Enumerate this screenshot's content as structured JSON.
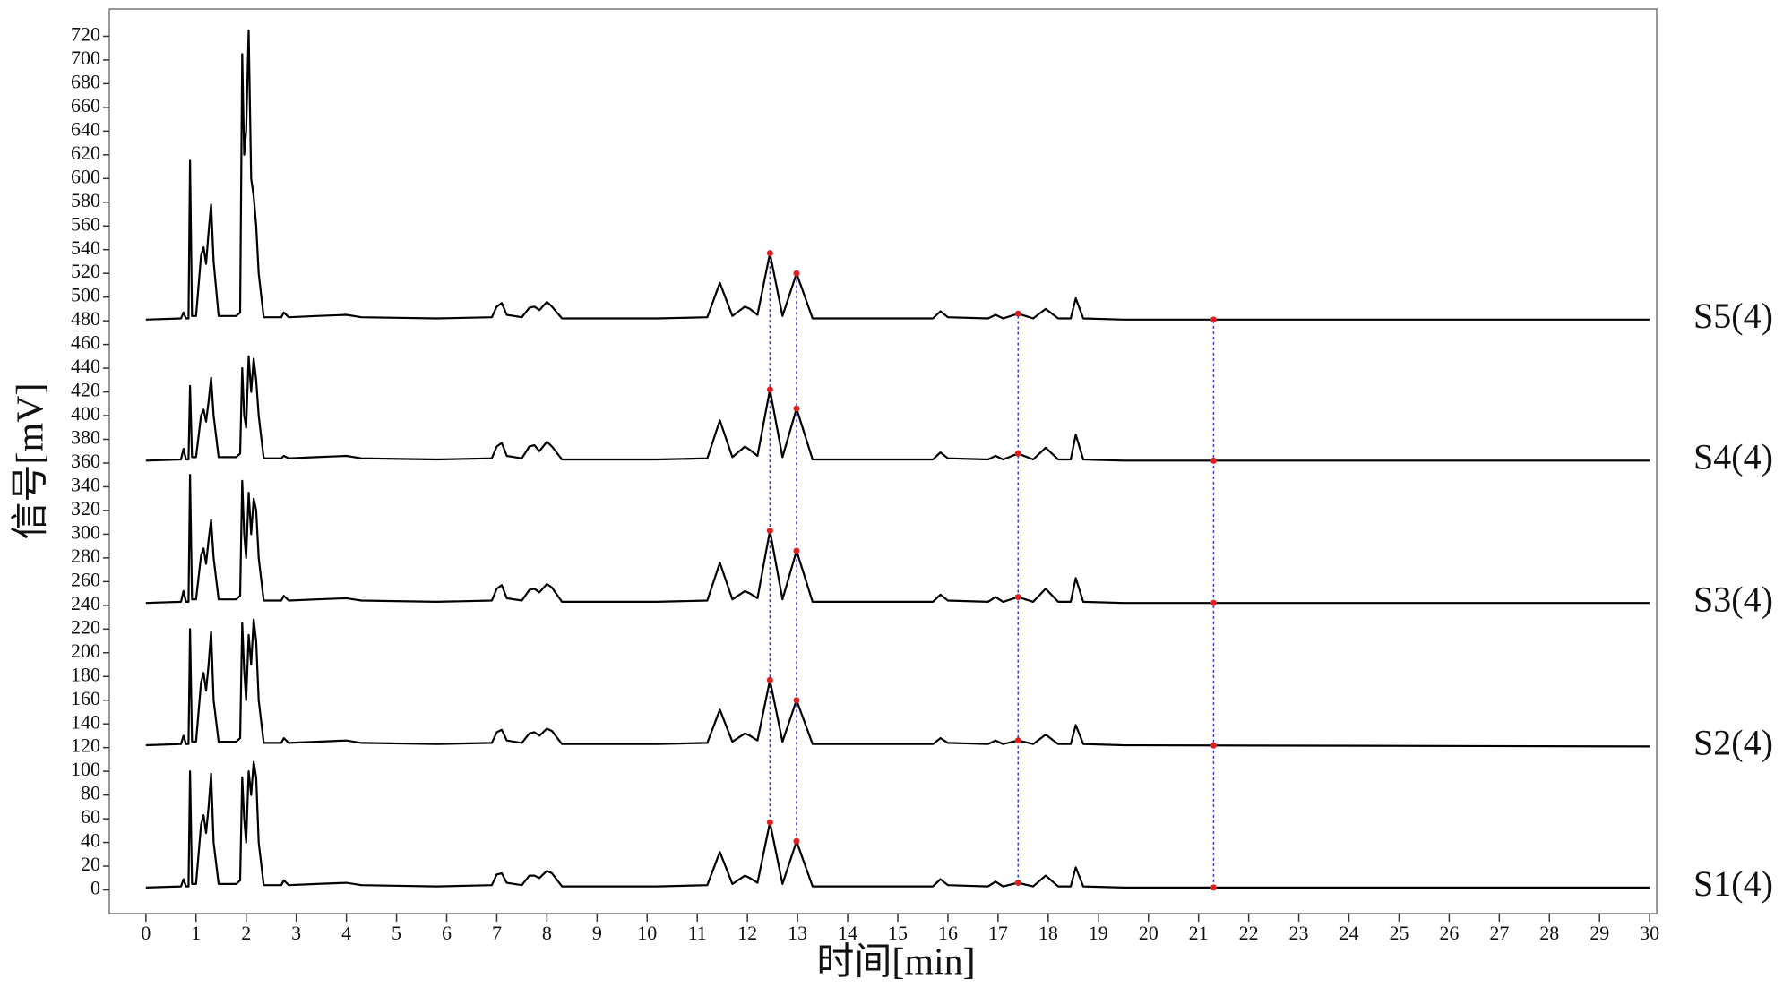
{
  "chart_data": {
    "type": "line",
    "x_label": "时间[min]",
    "y_label": "信号[mV]",
    "xlim": [
      -0.73,
      30.14
    ],
    "ylim": [
      -20,
      743
    ],
    "xticks": [
      0,
      1,
      2,
      3,
      4,
      5,
      6,
      7,
      8,
      9,
      10,
      11,
      12,
      13,
      14,
      15,
      16,
      17,
      18,
      19,
      20,
      21,
      22,
      23,
      24,
      25,
      26,
      27,
      28,
      29,
      30
    ],
    "yticks": [
      0,
      20,
      40,
      60,
      80,
      100,
      120,
      140,
      160,
      180,
      200,
      220,
      240,
      260,
      280,
      300,
      320,
      340,
      360,
      380,
      400,
      420,
      440,
      460,
      480,
      500,
      520,
      540,
      560,
      580,
      600,
      620,
      640,
      660,
      680,
      700,
      720
    ],
    "reference_lines": {
      "x": [
        12.45,
        12.98,
        17.4,
        21.3
      ],
      "color": "#3a3ad0"
    },
    "x": [
      0,
      0.7,
      0.75,
      0.8,
      0.85,
      0.88,
      0.92,
      1.0,
      1.1,
      1.15,
      1.2,
      1.25,
      1.3,
      1.35,
      1.45,
      1.8,
      1.88,
      1.92,
      1.96,
      2.0,
      2.05,
      2.1,
      2.15,
      2.2,
      2.25,
      2.35,
      2.7,
      2.75,
      2.85,
      3.4,
      4.0,
      4.3,
      5.8,
      6.9,
      7.0,
      7.1,
      7.2,
      7.5,
      7.65,
      7.75,
      7.85,
      8.0,
      8.1,
      8.3,
      10.2,
      11.2,
      11.45,
      11.7,
      11.95,
      12.05,
      12.2,
      12.45,
      12.7,
      12.98,
      13.3,
      15.7,
      15.85,
      16.0,
      16.8,
      16.95,
      17.1,
      17.4,
      17.7,
      17.95,
      18.2,
      18.45,
      18.55,
      18.7,
      19.5,
      30
    ],
    "series": [
      {
        "name": "S1(4)",
        "color": "#000000",
        "values": [
          2,
          3,
          9,
          3,
          3,
          100,
          5,
          5,
          55,
          63,
          48,
          70,
          98,
          40,
          5,
          5,
          8,
          95,
          60,
          40,
          100,
          80,
          108,
          95,
          40,
          4,
          4,
          8,
          4,
          5,
          6,
          4,
          3,
          4,
          13,
          14,
          6,
          4,
          12,
          12,
          10,
          16,
          14,
          3,
          3,
          4,
          32,
          5,
          12,
          10,
          6,
          57,
          5,
          41,
          3,
          3,
          9,
          4,
          3,
          7,
          3,
          6,
          3,
          12,
          3,
          3,
          19,
          3,
          2,
          2
        ]
      },
      {
        "name": "S2(4)",
        "color": "#000000",
        "values": [
          122,
          123,
          130,
          123,
          123,
          220,
          125,
          125,
          175,
          183,
          168,
          190,
          218,
          160,
          125,
          125,
          128,
          225,
          185,
          160,
          215,
          190,
          228,
          210,
          160,
          124,
          124,
          128,
          124,
          125,
          126,
          124,
          123,
          124,
          133,
          135,
          126,
          124,
          132,
          133,
          130,
          136,
          134,
          123,
          123,
          124,
          152,
          125,
          132,
          130,
          126,
          177,
          125,
          160,
          123,
          123,
          128,
          124,
          123,
          126,
          123,
          126,
          123,
          131,
          123,
          123,
          139,
          123,
          122,
          121
        ]
      },
      {
        "name": "S3(4)",
        "color": "#000000",
        "values": [
          242,
          243,
          252,
          243,
          243,
          350,
          245,
          245,
          282,
          288,
          275,
          295,
          312,
          280,
          245,
          245,
          248,
          345,
          300,
          280,
          335,
          300,
          330,
          320,
          280,
          244,
          244,
          248,
          244,
          245,
          246,
          244,
          243,
          244,
          254,
          257,
          246,
          244,
          253,
          254,
          251,
          258,
          255,
          243,
          243,
          244,
          276,
          245,
          252,
          250,
          246,
          303,
          245,
          286,
          243,
          243,
          249,
          244,
          243,
          247,
          243,
          247,
          243,
          254,
          243,
          243,
          263,
          243,
          242,
          242
        ]
      },
      {
        "name": "S4(4)",
        "color": "#000000",
        "values": [
          362,
          363,
          372,
          363,
          363,
          425,
          365,
          365,
          400,
          405,
          395,
          412,
          432,
          400,
          365,
          365,
          368,
          440,
          400,
          390,
          450,
          420,
          448,
          430,
          400,
          364,
          364,
          366,
          364,
          365,
          366,
          364,
          363,
          364,
          374,
          377,
          366,
          364,
          374,
          375,
          370,
          378,
          374,
          363,
          363,
          364,
          396,
          365,
          374,
          371,
          366,
          422,
          365,
          406,
          363,
          363,
          369,
          364,
          363,
          366,
          363,
          368,
          363,
          373,
          363,
          363,
          384,
          363,
          362,
          362
        ]
      },
      {
        "name": "S5(4)",
        "color": "#000000",
        "values": [
          481,
          482,
          487,
          482,
          482,
          615,
          484,
          484,
          535,
          542,
          528,
          555,
          578,
          530,
          484,
          484,
          487,
          705,
          620,
          640,
          725,
          600,
          585,
          560,
          520,
          483,
          483,
          487,
          483,
          484,
          485,
          483,
          482,
          483,
          492,
          495,
          485,
          483,
          491,
          492,
          489,
          496,
          492,
          482,
          482,
          483,
          512,
          484,
          492,
          490,
          485,
          537,
          484,
          520,
          482,
          482,
          488,
          483,
          482,
          485,
          482,
          486,
          482,
          490,
          482,
          482,
          499,
          482,
          481,
          481
        ]
      }
    ]
  }
}
